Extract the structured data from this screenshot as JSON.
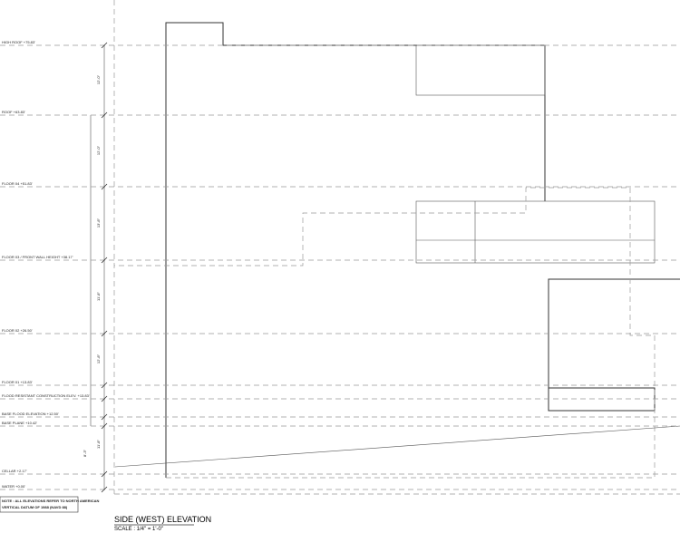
{
  "levels": [
    "HIGH ROOF +75.83'",
    "ROOF +63.83'",
    "FLOOR 04 +51.83'",
    "FLOOR 03 / FRONT WALL HEIGHT +38.17'",
    "FLOOR 02 +26.50'",
    "FLOOR 01 +13.83'",
    "FLOOD RESISTANT CONSTRUCTION ELEV. +13.83'",
    "BASE FLOOD ELEVATION +12.50'",
    "BASE PLANE +10.42'",
    "CELLAR +2.17'",
    "WATER +0.00'"
  ],
  "dimensions": [
    "12'-0\"",
    "12'-0\"",
    "13'-8\"",
    "11'-8\"",
    "12'-8\"",
    "11'-8\"",
    "8'-3\""
  ],
  "note": [
    "NOTE : ALL ELEVATIONS REFER TO NORTH AMERICAN",
    "VERTICAL DATUM OF 1988 (NAVD 88)"
  ],
  "title": "SIDE (WEST) ELEVATION",
  "scale": "SCALE : 1/4\" = 1'-0\""
}
